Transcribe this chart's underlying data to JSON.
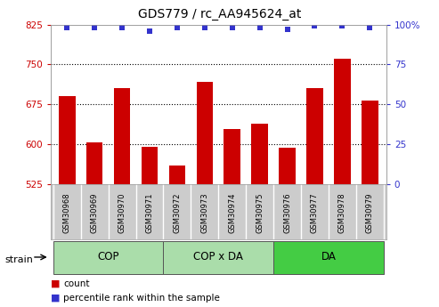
{
  "title": "GDS779 / rc_AA945624_at",
  "categories": [
    "GSM30968",
    "GSM30969",
    "GSM30970",
    "GSM30971",
    "GSM30972",
    "GSM30973",
    "GSM30974",
    "GSM30975",
    "GSM30976",
    "GSM30977",
    "GSM30978",
    "GSM30979"
  ],
  "bar_values": [
    690,
    603,
    706,
    596,
    560,
    718,
    628,
    638,
    593,
    706,
    760,
    683
  ],
  "percentile_values": [
    98,
    98,
    98,
    96,
    98,
    98,
    98,
    98,
    97,
    99,
    99,
    98
  ],
  "bar_color": "#cc0000",
  "percentile_color": "#3333cc",
  "ylim_left": [
    525,
    825
  ],
  "ylim_right": [
    0,
    100
  ],
  "yticks_left": [
    525,
    600,
    675,
    750,
    825
  ],
  "yticks_right": [
    0,
    25,
    50,
    75,
    100
  ],
  "groups": [
    {
      "label": "COP",
      "start": 0,
      "end": 3,
      "color": "#aaddaa"
    },
    {
      "label": "COP x DA",
      "start": 4,
      "end": 7,
      "color": "#aaddaa"
    },
    {
      "label": "DA",
      "start": 8,
      "end": 11,
      "color": "#44cc44"
    }
  ],
  "strain_label": "strain",
  "legend_count": "count",
  "legend_percentile": "percentile rank within the sample",
  "background_color": "#ffffff",
  "tick_area_color": "#cccccc",
  "cell_border_color": "#aaaaaa",
  "group_border_color": "#555555"
}
